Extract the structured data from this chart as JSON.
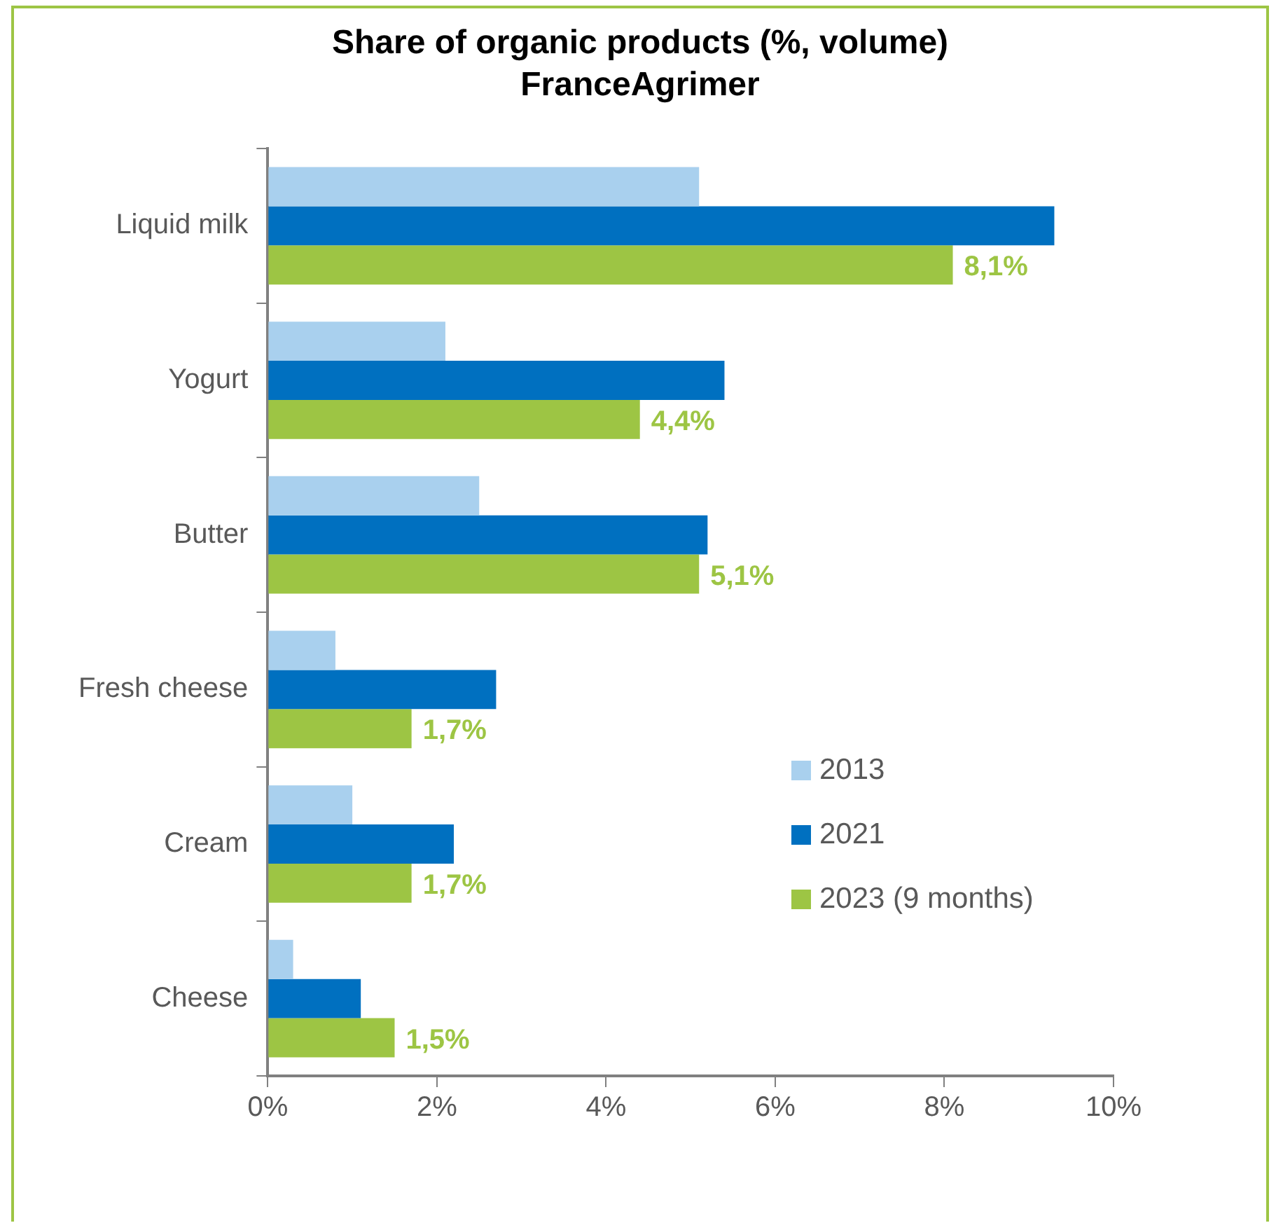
{
  "chart_data": {
    "type": "bar",
    "orientation": "horizontal",
    "title": "Share of organic products (%, volume)",
    "subtitle": "FranceAgrimer",
    "categories": [
      "Liquid milk",
      "Yogurt",
      "Butter",
      "Fresh cheese",
      "Cream",
      "Cheese"
    ],
    "series": [
      {
        "name": "2013",
        "color": "#a9d0ee",
        "values": [
          5.1,
          2.1,
          2.5,
          0.8,
          1.0,
          0.3
        ]
      },
      {
        "name": "2021",
        "color": "#0070c0",
        "values": [
          9.3,
          5.4,
          5.2,
          2.7,
          2.2,
          1.1
        ]
      },
      {
        "name": "2023 (9 months)",
        "color": "#9dc544",
        "values": [
          8.1,
          4.4,
          5.1,
          1.7,
          1.7,
          1.5
        ],
        "value_labels": [
          "8,1%",
          "4,4%",
          "5,1%",
          "1,7%",
          "1,7%",
          "1,5%"
        ]
      }
    ],
    "xlim": [
      0,
      10
    ],
    "xticks": [
      {
        "value": 0,
        "label": "0%"
      },
      {
        "value": 2,
        "label": "2%"
      },
      {
        "value": 4,
        "label": "4%"
      },
      {
        "value": 6,
        "label": "6%"
      },
      {
        "value": 8,
        "label": "8%"
      },
      {
        "value": 10,
        "label": "10%"
      }
    ],
    "grid": false,
    "legend": "bottom right"
  }
}
